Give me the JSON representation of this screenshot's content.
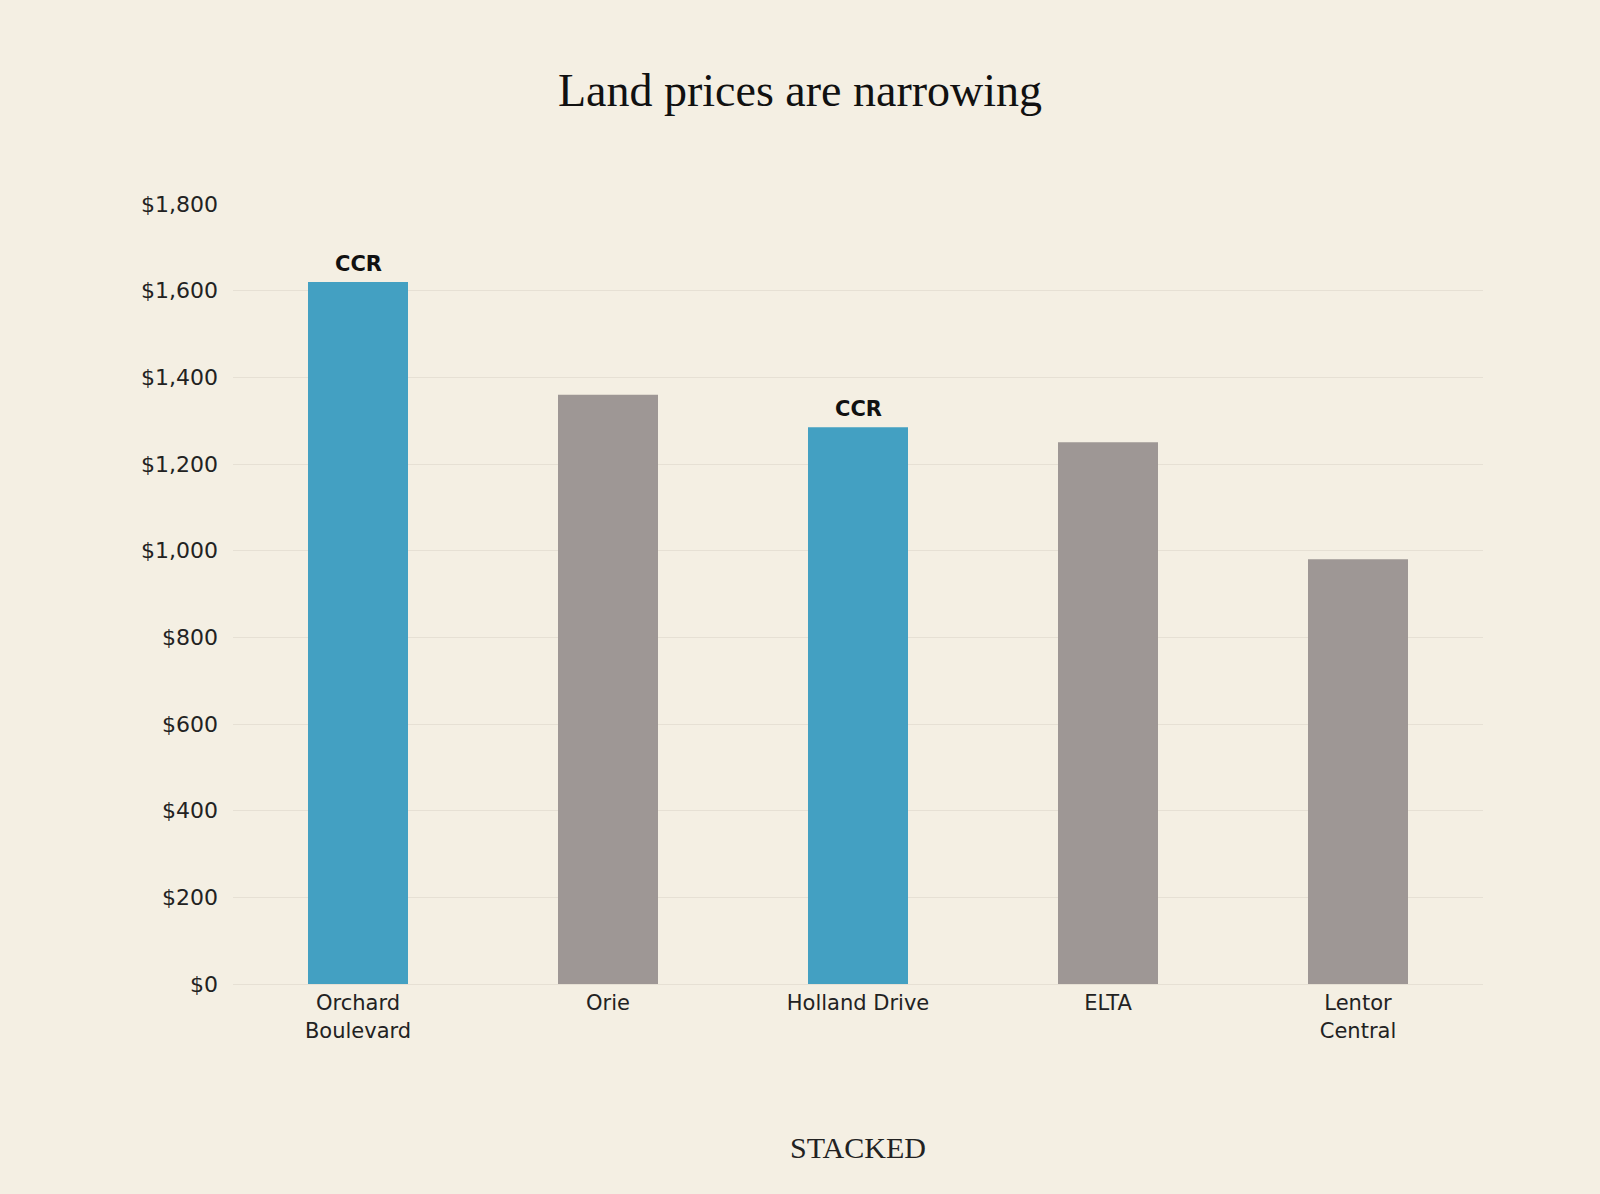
{
  "chart_data": {
    "type": "bar",
    "title": "Land prices are narrowing",
    "categories": [
      "Orchard\nBoulevard",
      "Orie",
      "Holland Drive",
      "ELTA",
      "Lentor\nCentral"
    ],
    "values": [
      1620,
      1360,
      1285,
      1250,
      980
    ],
    "colors": [
      "#43a0c2",
      "#9e9795",
      "#43a0c2",
      "#9e9795",
      "#9e9795"
    ],
    "ylim": [
      0,
      1800
    ],
    "yticks": [
      {
        "value": 0,
        "label": "$0"
      },
      {
        "value": 200,
        "label": "$200"
      },
      {
        "value": 400,
        "label": "$400"
      },
      {
        "value": 600,
        "label": "$600"
      },
      {
        "value": 800,
        "label": "$800"
      },
      {
        "value": 1000,
        "label": "$1,000"
      },
      {
        "value": 1200,
        "label": "$1,200"
      },
      {
        "value": 1400,
        "label": "$1,400"
      },
      {
        "value": 1600,
        "label": "$1,600"
      },
      {
        "value": 1800,
        "label": "$1,800"
      }
    ],
    "grid": true,
    "annotations": [
      {
        "category": "Orchard\nBoulevard",
        "text": "CCR"
      },
      {
        "category": "Holland Drive",
        "text": "CCR"
      }
    ],
    "source": "STACKED"
  }
}
